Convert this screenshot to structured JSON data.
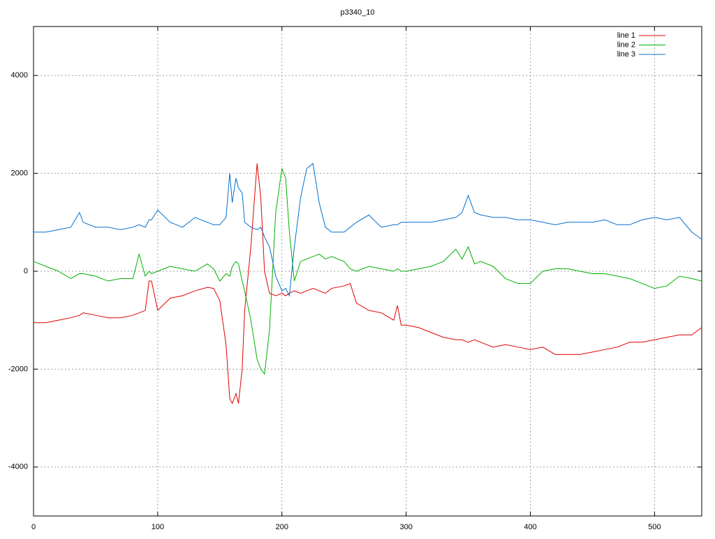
{
  "chart_data": {
    "type": "line",
    "title": "p3340_10",
    "x": [
      0,
      10,
      20,
      30,
      37,
      40,
      50,
      60,
      70,
      80,
      85,
      90,
      93,
      95,
      100,
      110,
      120,
      130,
      140,
      145,
      150,
      155,
      158,
      160,
      163,
      165,
      168,
      170,
      175,
      180,
      183,
      186,
      190,
      195,
      200,
      203,
      206,
      210,
      215,
      220,
      225,
      230,
      235,
      240,
      250,
      255,
      260,
      270,
      280,
      290,
      293,
      296,
      300,
      310,
      320,
      330,
      340,
      345,
      350,
      355,
      360,
      370,
      380,
      390,
      400,
      410,
      420,
      430,
      440,
      450,
      460,
      470,
      480,
      490,
      500,
      510,
      520,
      530,
      538
    ],
    "series": [
      {
        "name": "line 1",
        "color": "#e00000",
        "values": [
          -1050,
          -1050,
          -1000,
          -950,
          -900,
          -850,
          -900,
          -950,
          -950,
          -900,
          -850,
          -800,
          -200,
          -200,
          -800,
          -550,
          -500,
          -400,
          -330,
          -350,
          -600,
          -1500,
          -2600,
          -2700,
          -2500,
          -2700,
          -2000,
          -800,
          500,
          2200,
          1500,
          0,
          -450,
          -500,
          -450,
          -500,
          -450,
          -400,
          -450,
          -400,
          -350,
          -400,
          -450,
          -350,
          -300,
          -250,
          -650,
          -800,
          -850,
          -1000,
          -700,
          -1100,
          -1100,
          -1150,
          -1250,
          -1350,
          -1400,
          -1400,
          -1450,
          -1400,
          -1450,
          -1550,
          -1500,
          -1550,
          -1600,
          -1550,
          -1700,
          -1700,
          -1700,
          -1650,
          -1600,
          -1550,
          -1450,
          -1450,
          -1400,
          -1350,
          -1300,
          -1300,
          -1150
        ]
      },
      {
        "name": "line 2",
        "color": "#00b000",
        "values": [
          200,
          100,
          0,
          -150,
          -50,
          -50,
          -100,
          -200,
          -150,
          -150,
          350,
          -100,
          0,
          -50,
          0,
          100,
          50,
          0,
          150,
          50,
          -200,
          -50,
          -100,
          100,
          200,
          150,
          -200,
          -400,
          -1000,
          -1800,
          -2000,
          -2100,
          -1200,
          1200,
          2100,
          1900,
          800,
          -200,
          200,
          250,
          300,
          350,
          250,
          300,
          200,
          50,
          0,
          100,
          50,
          0,
          50,
          0,
          0,
          50,
          100,
          200,
          450,
          250,
          500,
          150,
          200,
          100,
          -150,
          -250,
          -250,
          0,
          50,
          50,
          0,
          -50,
          -50,
          -100,
          -150,
          -250,
          -350,
          -300,
          -100,
          -150,
          -200
        ]
      },
      {
        "name": "line 3",
        "color": "#0070d0",
        "values": [
          800,
          800,
          850,
          900,
          1200,
          1000,
          900,
          900,
          850,
          900,
          950,
          900,
          1050,
          1050,
          1250,
          1000,
          900,
          1100,
          1000,
          950,
          950,
          1100,
          2000,
          1400,
          1900,
          1700,
          1600,
          1000,
          900,
          850,
          900,
          700,
          500,
          -100,
          -400,
          -350,
          -500,
          500,
          1500,
          2100,
          2200,
          1400,
          900,
          800,
          800,
          900,
          1000,
          1150,
          900,
          950,
          950,
          1000,
          1000,
          1000,
          1000,
          1050,
          1100,
          1200,
          1550,
          1200,
          1150,
          1100,
          1100,
          1050,
          1050,
          1000,
          950,
          1000,
          1000,
          1000,
          1050,
          950,
          950,
          1050,
          1100,
          1050,
          1100,
          800,
          650
        ]
      }
    ],
    "xlim": [
      0,
      538
    ],
    "ylim": [
      -5000,
      5000
    ],
    "xticks": [
      0,
      100,
      200,
      300,
      400,
      500
    ],
    "yticks": [
      -4000,
      -2000,
      0,
      2000,
      4000
    ],
    "grid": true,
    "legend": "top-right"
  }
}
